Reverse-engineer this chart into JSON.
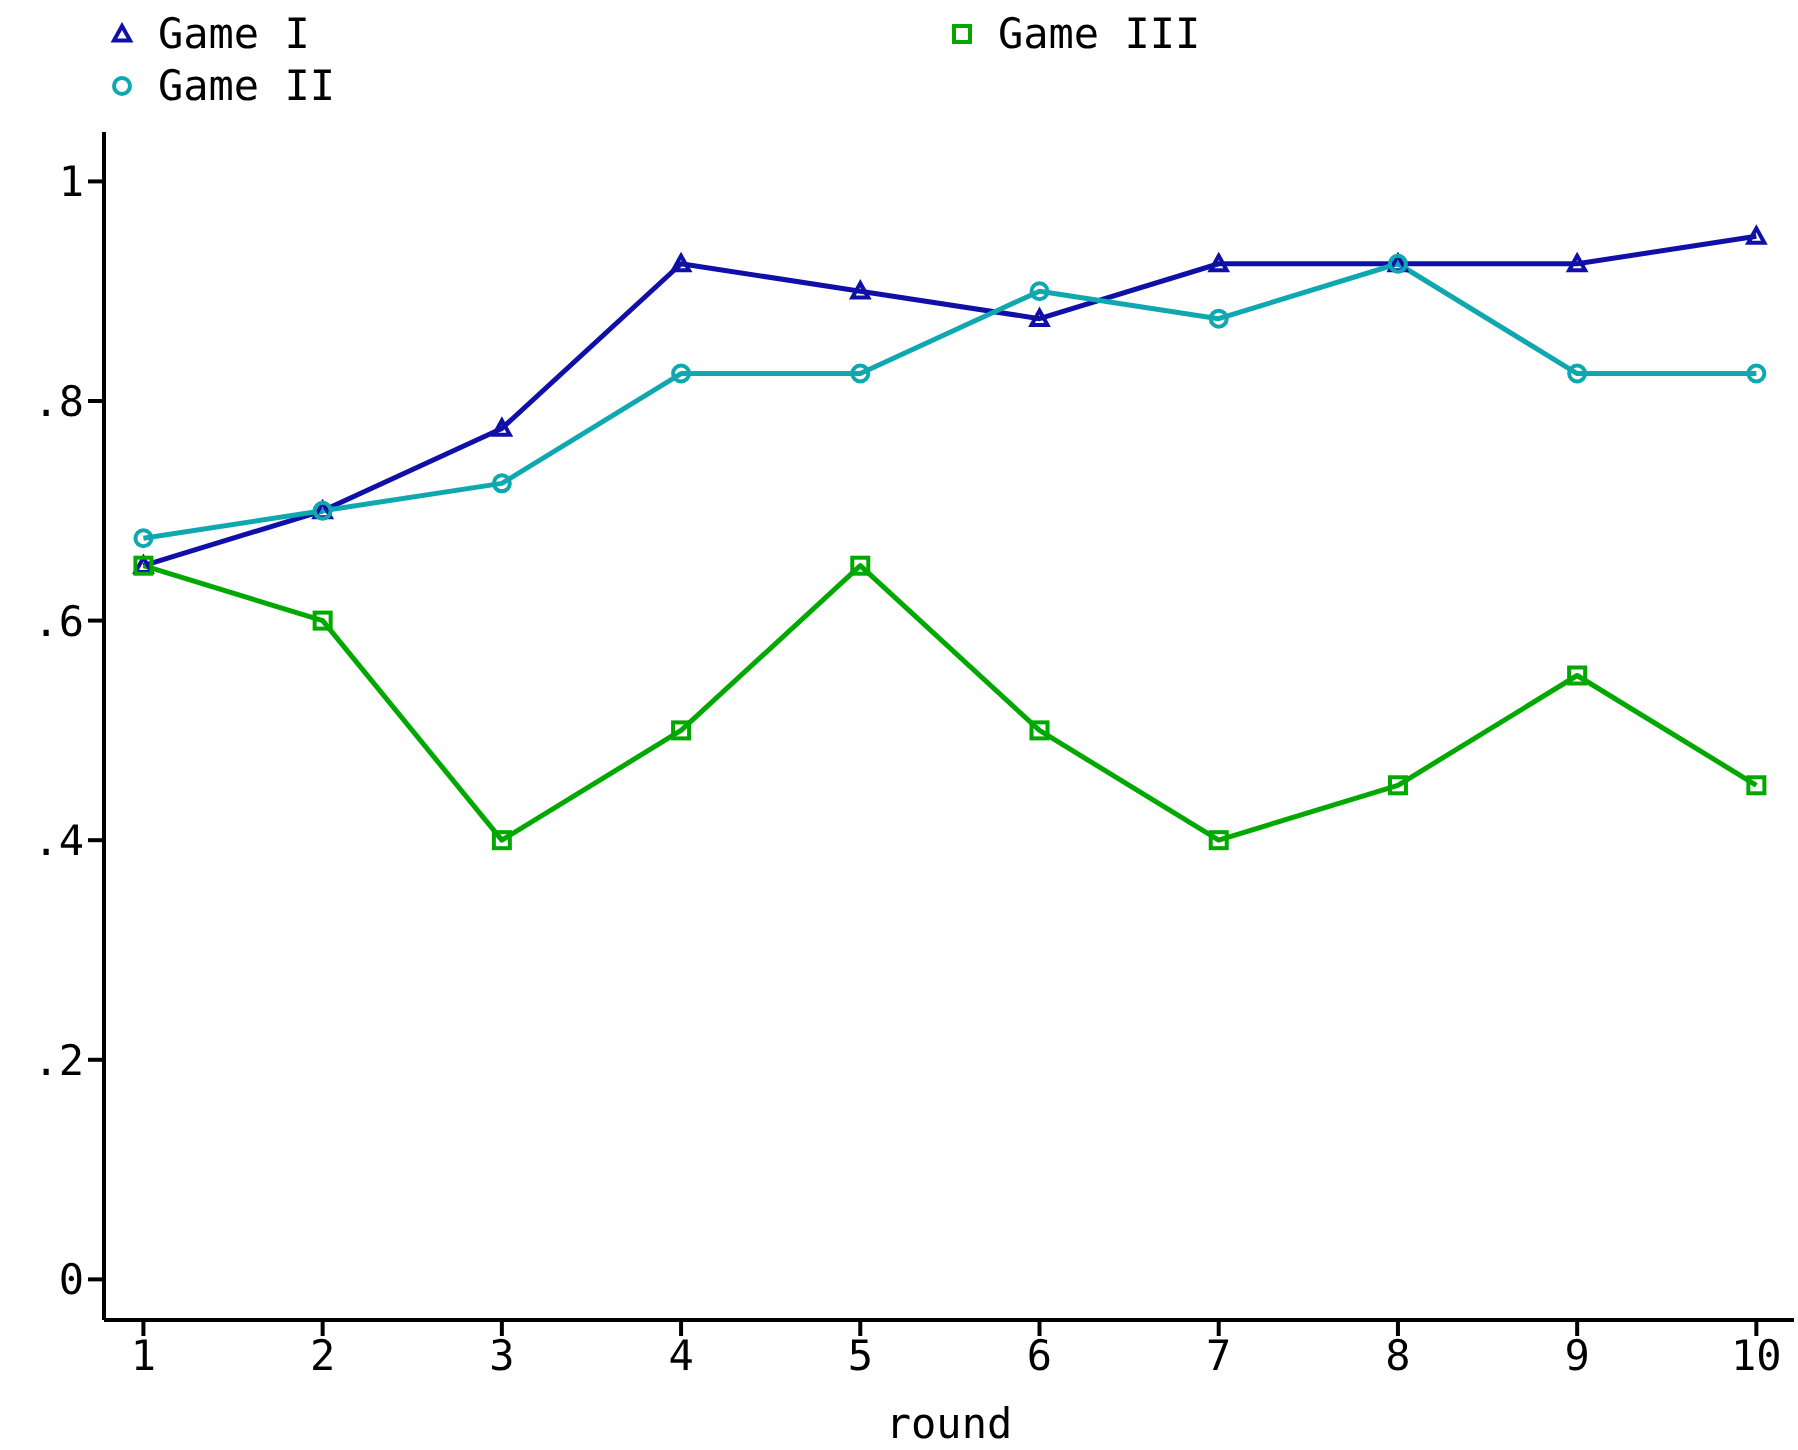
{
  "chart_data": {
    "type": "line",
    "xlabel": "round",
    "x": [
      1,
      2,
      3,
      4,
      5,
      6,
      7,
      8,
      9,
      10
    ],
    "series": [
      {
        "name": "Game I",
        "color": "#1010a8",
        "marker": "triangle",
        "values": [
          0.65,
          0.7,
          0.775,
          0.925,
          0.9,
          0.875,
          0.925,
          0.925,
          0.925,
          0.95
        ]
      },
      {
        "name": "Game II",
        "color": "#10a8b0",
        "marker": "circle",
        "values": [
          0.675,
          0.7,
          0.725,
          0.825,
          0.825,
          0.9,
          0.875,
          0.925,
          0.825,
          0.825
        ]
      },
      {
        "name": "Game III",
        "color": "#00a800",
        "marker": "square",
        "values": [
          0.65,
          0.6,
          0.4,
          0.5,
          0.65,
          0.5,
          0.4,
          0.45,
          0.55,
          0.45
        ]
      }
    ],
    "xlim": [
      0.78,
      10.21
    ],
    "xticks": [
      1,
      2,
      3,
      4,
      5,
      6,
      7,
      8,
      9,
      10
    ],
    "ylim": [
      -0.037,
      1.045
    ],
    "yticks": [
      0,
      {
        "value": 0.2,
        "label": ".2"
      },
      {
        "value": 0.4,
        "label": ".4"
      },
      {
        "value": 0.6,
        "label": ".6"
      },
      {
        "value": 0.8,
        "label": ".8"
      },
      1
    ],
    "grid": false,
    "legend": "top left",
    "line_style": "solid"
  }
}
